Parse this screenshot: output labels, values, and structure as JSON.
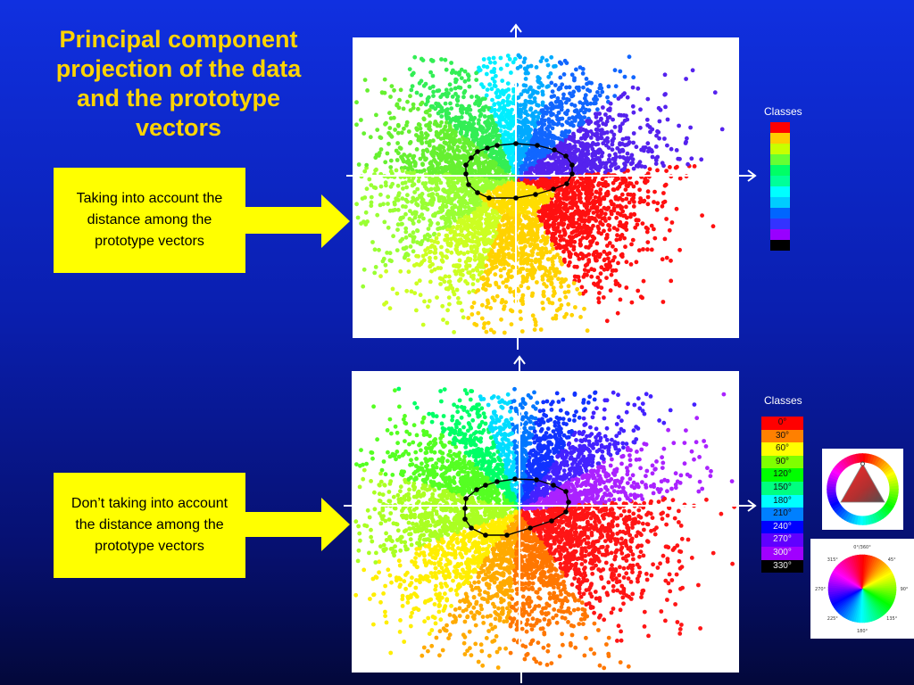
{
  "slide": {
    "title": "Principal component projection of the data and the prototype vectors",
    "note_top": "Taking into account the distance among the prototype vectors",
    "note_bottom": "Don’t taking into account the distance among the prototype vectors",
    "legend_top_label": "Classes",
    "legend_bottom_label": "Classes"
  },
  "legend_top": {
    "colors": [
      "#ff0000",
      "#ffcc00",
      "#c8ff00",
      "#66ff33",
      "#00ff66",
      "#00ff99",
      "#00ffff",
      "#00ccff",
      "#0066ff",
      "#3333ff",
      "#9900ff",
      "#000000"
    ]
  },
  "legend_bottom": {
    "labels": [
      "0°",
      "30°",
      "60°",
      "90°",
      "120°",
      "150°",
      "180°",
      "210°",
      "240°",
      "270°",
      "300°",
      "330°"
    ],
    "colors": [
      "#ff0000",
      "#ff8000",
      "#ffff00",
      "#80ff00",
      "#00ff00",
      "#00ff80",
      "#00ffff",
      "#0080ff",
      "#0000ff",
      "#6000ff",
      "#a000ff",
      "#000000"
    ]
  },
  "wheel_bottom": {
    "angle_labels": [
      "0°/360°",
      "45°",
      "90°",
      "135°",
      "180°",
      "225°",
      "270°",
      "315°"
    ]
  }
}
